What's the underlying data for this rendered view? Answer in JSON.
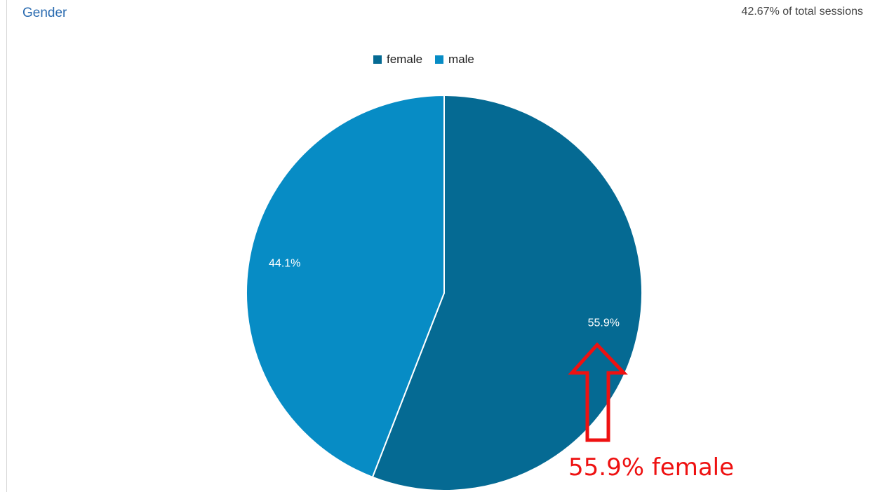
{
  "widget": {
    "title": "Gender",
    "sessions_text": "42.67% of total sessions"
  },
  "colors": {
    "female": "#056a93",
    "male": "#078cc5",
    "title": "#2a6bb0",
    "annotation": "#ee1111"
  },
  "chart_data": {
    "type": "pie",
    "title": "",
    "legend_position": "top",
    "categories": [
      "female",
      "male"
    ],
    "values": [
      55.9,
      44.1
    ],
    "labels": [
      "55.9%",
      "44.1%"
    ]
  },
  "annotation": {
    "text": "55.9% female",
    "arrow": "up-arrow-icon"
  }
}
